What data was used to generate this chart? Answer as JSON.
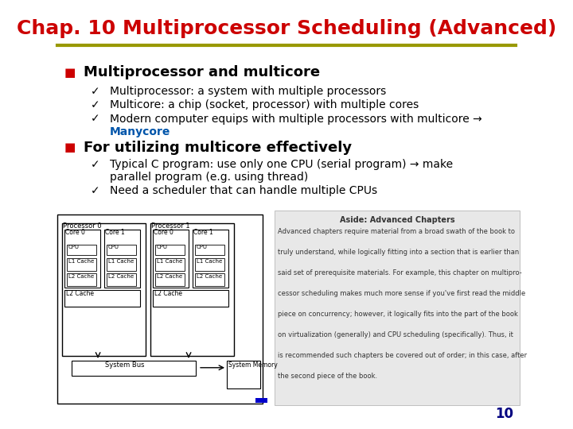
{
  "title": "Chap. 10 Multiprocessor Scheduling (Advanced)",
  "title_color": "#CC0000",
  "title_fontsize": 18,
  "separator_color": "#999900",
  "bg_color": "#FFFFFF",
  "bullet1_text": "Multiprocessor and multicore",
  "bullet1_color": "#000000",
  "bullet_marker_color": "#CC0000",
  "sub_bullets1": [
    "Multiprocessor: a system with multiple processors",
    "Multicore: a chip (socket, processor) with multiple cores",
    "Modern computer equips with multiple processors with multicore →"
  ],
  "manycore_text": "Manycore",
  "manycore_color": "#0055AA",
  "bullet2_text": "For utilizing multicore effectively",
  "sub_bullets2_line1": "Typical C program: use only one CPU (serial program) → make",
  "sub_bullets2_line2": "parallel program (e.g. using thread)",
  "sub_bullets2_line3": "Need a scheduler that can handle multiple CPUs",
  "checkmark_color": "#000000",
  "aside_bg": "#E8E8E8",
  "aside_title": "Aside: Advanced Chapters",
  "aside_text": "Advanced chapters require material from a broad swath of the book to truly understand, while logically fitting into a section that is earlier than said set of prerequisite materials. For example, this chapter on multipro-cessor scheduling makes much more sense if you've first read the middle piece on concurrency; however, it logically fits into the part of the book on virtualization (generally) and CPU scheduling (specifically). Thus, it is recommended such chapters be covered out of order; in this case, after the second piece of the book.",
  "page_num": "10",
  "page_num_color": "#000080"
}
